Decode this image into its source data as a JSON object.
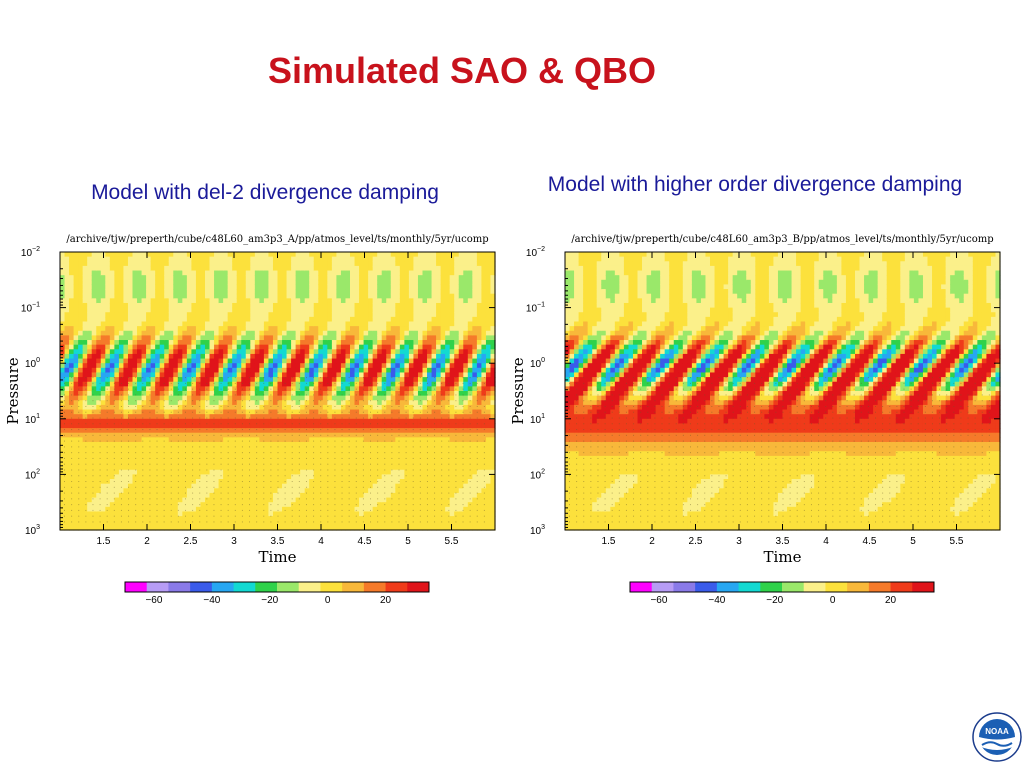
{
  "slide": {
    "title": "Simulated SAO & QBO",
    "caption_left": "Model with del-2 divergence damping",
    "caption_right": "Model with higher order divergence damping"
  },
  "colors": {
    "title": "#c8121c",
    "caption": "#1a1a99",
    "colormap": [
      "#ff00ff",
      "#b79cf5",
      "#8a7ae8",
      "#3a5bea",
      "#27a7f2",
      "#12d9d2",
      "#2fd24a",
      "#9ae86a",
      "#fbf08a",
      "#fce13c",
      "#f8b83a",
      "#f57a2a",
      "#ef3b1a",
      "#e0141a"
    ]
  },
  "chart_data": [
    {
      "type": "heatmap",
      "file_path": "/archive/tjw/preperth/cube/c48L60_am3p3_A/pp/atmos_level/ts/monthly/5yr/ucomp",
      "xlabel": "Time",
      "ylabel": "Pressure",
      "x_ticks": [
        "1.5",
        "2",
        "2.5",
        "3",
        "3.5",
        "4",
        "4.5",
        "5",
        "5.5"
      ],
      "xlim": [
        1.0,
        6.0
      ],
      "y_ticks": [
        {
          "base": "10",
          "exp": "−2"
        },
        {
          "base": "10",
          "exp": "−1"
        },
        {
          "base": "10",
          "exp": "0"
        },
        {
          "base": "10",
          "exp": "1"
        },
        {
          "base": "10",
          "exp": "2"
        },
        {
          "base": "10",
          "exp": "3"
        }
      ],
      "y_scale": "log",
      "ylim": [
        1000,
        0.01
      ],
      "colorbar": {
        "ticks": [
          "−60",
          "−40",
          "−20",
          "0",
          "20"
        ],
        "range": [
          -70,
          35
        ]
      },
      "sao_cycles": 11,
      "features": "Alternating easterly/westerly bands near 10^0 hPa (SAO); persistent westerly band near 10^1 hPa; weak QBO signal below."
    },
    {
      "type": "heatmap",
      "file_path": "/archive/tjw/preperth/cube/c48L60_am3p3_B/pp/atmos_level/ts/monthly/5yr/ucomp",
      "xlabel": "Time",
      "ylabel": "Pressure",
      "x_ticks": [
        "1.5",
        "2",
        "2.5",
        "3",
        "3.5",
        "4",
        "4.5",
        "5",
        "5.5"
      ],
      "xlim": [
        1.0,
        6.0
      ],
      "y_ticks": [
        {
          "base": "10",
          "exp": "−2"
        },
        {
          "base": "10",
          "exp": "−1"
        },
        {
          "base": "10",
          "exp": "0"
        },
        {
          "base": "10",
          "exp": "1"
        },
        {
          "base": "10",
          "exp": "2"
        },
        {
          "base": "10",
          "exp": "3"
        }
      ],
      "y_scale": "log",
      "ylim": [
        1000,
        0.01
      ],
      "colorbar": {
        "ticks": [
          "−60",
          "−40",
          "−20",
          "0",
          "20"
        ],
        "range": [
          -70,
          35
        ]
      },
      "sao_cycles": 10,
      "features": "Stronger SAO near 10^0 hPa with descending tilted westerly bands; broad westerly region 10^0–10^1.5 hPa; weak QBO below."
    }
  ],
  "logo": {
    "name": "noaa-logo",
    "text": "NOAA"
  }
}
